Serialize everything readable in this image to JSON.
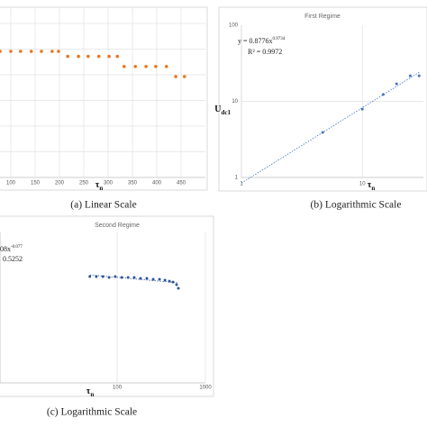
{
  "chart_data": [
    {
      "type": "scatter",
      "caption": "(a) Linear Scale",
      "x_label": {
        "symbol": "τ",
        "sub": "n"
      },
      "x": [
        78,
        100,
        120,
        142,
        163,
        185,
        198,
        217,
        239,
        259,
        281,
        302,
        319,
        333,
        356,
        378,
        398,
        420,
        439,
        457
      ],
      "series": [
        {
          "name": "data",
          "color": "#e87722",
          "values": [
            5.0,
            5.0,
            5.0,
            5.0,
            5.0,
            5.0,
            5.0,
            4.8,
            4.8,
            4.8,
            4.8,
            4.8,
            4.8,
            4.4,
            4.4,
            4.4,
            4.4,
            4.4,
            4.0,
            4.0
          ]
        }
      ],
      "xlim": [
        75,
        500
      ],
      "ylim": [
        0,
        6.75
      ],
      "xticks": [
        100,
        150,
        200,
        250,
        300,
        350,
        400,
        450
      ],
      "grid": true,
      "log": false
    },
    {
      "type": "scatter",
      "title": "First Regime",
      "caption": "(b) Logarithmic Scale",
      "x_label": {
        "symbol": "τ",
        "sub": "n"
      },
      "y_label": {
        "symbol": "U",
        "sub": "dc1"
      },
      "equation": {
        "text": "y = 0.8776x",
        "sup": "0.9734"
      },
      "r2": "R² = 0.9972",
      "x": [
        4.7,
        10,
        14.9,
        19.2,
        24.9,
        29.5
      ],
      "series": [
        {
          "name": "data",
          "color": "#4472c4",
          "values": [
            3.9,
            7.9,
            12.3,
            17,
            21.7,
            21.7
          ]
        }
      ],
      "xlim": [
        1,
        32
      ],
      "ylim": [
        1,
        100
      ],
      "xticks": [
        1,
        10
      ],
      "yticks": [
        1,
        10,
        100
      ],
      "grid": true,
      "log": true,
      "trendline": true
    },
    {
      "type": "scatter",
      "title": "Second Regime",
      "caption": "(c) Logarithmic Scale",
      "x_label": {
        "symbol": "τ",
        "sub": "n"
      },
      "equation": {
        "text": "08x",
        "sup": "-0.077"
      },
      "r2": "0.5252",
      "x": [
        49,
        58,
        69,
        81,
        95,
        113,
        133,
        156,
        184,
        217,
        256,
        302,
        348,
        391,
        430,
        471,
        494
      ],
      "series": [
        {
          "name": "data",
          "color": "#2e5597",
          "values": [
            25.9,
            25.9,
            25.9,
            25.2,
            25.9,
            25.2,
            25.2,
            25.2,
            24.5,
            24.5,
            23.8,
            23.8,
            23.2,
            22.5,
            21.9,
            20.2,
            18.1
          ]
        }
      ],
      "xlim": [
        4.7,
        1000
      ],
      "ylim": [
        1,
        100
      ],
      "xticks": [
        100,
        1000
      ],
      "grid": true,
      "log": true,
      "trendline": true
    }
  ]
}
